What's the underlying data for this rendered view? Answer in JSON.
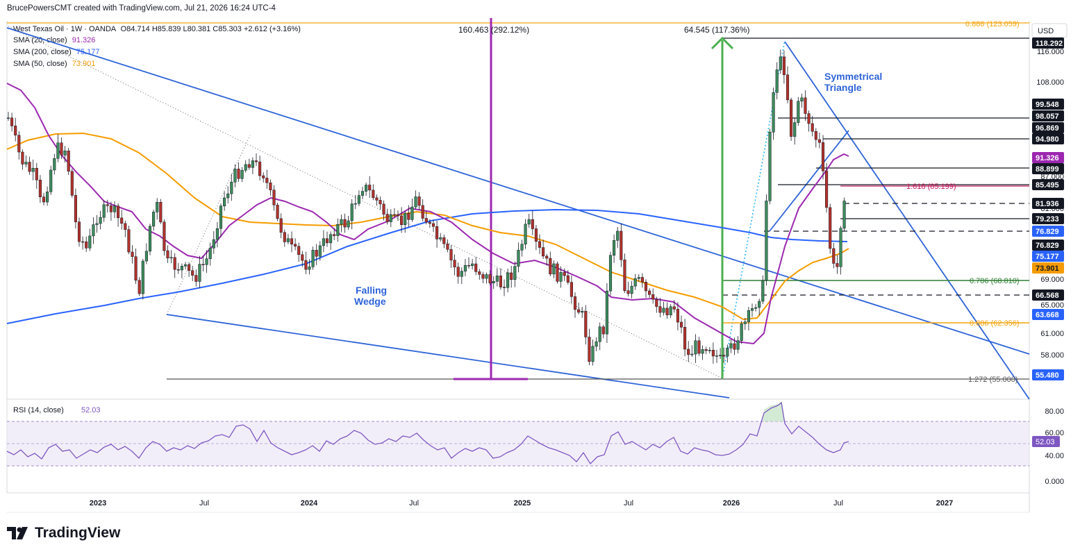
{
  "header": {
    "attribution": "BrucePowersCMT created with TradingView.com, Jul 21, 2026 16:24 UTC-4"
  },
  "legend": {
    "symbol": "West Texas Oil · 1W · OANDA",
    "ohlc": "O84.714 H85.839 L80.381 C85.303 +2.612 (+3.16%)",
    "sma20_label": "SMA (20, close)",
    "sma20_value": "91.326",
    "sma200_label": "SMA (200, close)",
    "sma200_value": "75.177",
    "sma50_label": "SMA (50, close)",
    "sma50_value": "73.901"
  },
  "colors": {
    "up": "#26a69a",
    "up_body": "#3d8c5c",
    "down": "#b2322c",
    "sma20": "#9c27b0",
    "sma200": "#2962ff",
    "sma50": "#f59b00",
    "trend": "#2d63d8",
    "fib_orange": "#f5a30a",
    "fib_green": "#2e7d32",
    "fib_magenta": "#c2185b",
    "rsi": "#7e57c2",
    "dark_label": "#131722"
  },
  "currency": "USD",
  "logo_text": "TradingView",
  "chart_data": {
    "type": "candlestick",
    "title": "West Texas Oil · 1W · OANDA",
    "x_tick_labels": [
      "2023",
      "Jul",
      "2024",
      "Jul",
      "2025",
      "Jul",
      "2026",
      "Jul",
      "2027"
    ],
    "y_tick_labels": [
      "116.000",
      "108.000",
      "87.000",
      "81.000",
      "69.000",
      "65.000",
      "61.000",
      "58.000"
    ],
    "price_tags": [
      {
        "value": "118.292",
        "style": "dark"
      },
      {
        "value": "99.548",
        "style": "dark"
      },
      {
        "value": "98.057",
        "style": "dark"
      },
      {
        "value": "96.869",
        "style": "dark"
      },
      {
        "value": "94.980",
        "style": "dark"
      },
      {
        "value": "91.326",
        "style": "sma20"
      },
      {
        "value": "88.899",
        "style": "dark"
      },
      {
        "value": "85.495",
        "style": "dark"
      },
      {
        "value": "81.936",
        "style": "dark"
      },
      {
        "value": "79.233",
        "style": "dark"
      },
      {
        "value": "76.829",
        "style": "sma200"
      },
      {
        "value": "76.829",
        "style": "dark"
      },
      {
        "value": "75.177",
        "style": "sma200"
      },
      {
        "value": "73.901",
        "style": "sma50"
      },
      {
        "value": "66.568",
        "style": "dark"
      },
      {
        "value": "63.668",
        "style": "sma200"
      },
      {
        "value": "55.480",
        "style": "sma200"
      }
    ],
    "annotations": [
      {
        "text": "160.463 (292.12%)"
      },
      {
        "text": "64.545 (117.36%)"
      },
      {
        "text": "Symmetrical"
      },
      {
        "text": "Triangle"
      },
      {
        "text": "Falling"
      },
      {
        "text": "Wedge"
      },
      {
        "text": "0.886 (123.059)"
      },
      {
        "text": "1.618 (85.199)"
      },
      {
        "text": "0.786 (68.810)"
      },
      {
        "text": "0.886 (62.356)"
      },
      {
        "text": "1.272 (55.000)"
      }
    ],
    "series": [
      {
        "name": "SMA (20, close)",
        "last": 91.326
      },
      {
        "name": "SMA (200, close)",
        "last": 75.177
      },
      {
        "name": "SMA (50, close)",
        "last": 73.901
      }
    ],
    "rsi": {
      "label": "RSI (14, close)",
      "value": "52.03",
      "y_tick_labels": [
        "80.00",
        "60.00",
        "40.00",
        "0.000"
      ],
      "value_tag": "52.03"
    },
    "last_candle": {
      "open": 84.714,
      "high": 85.839,
      "low": 80.381,
      "close": 85.303
    }
  }
}
